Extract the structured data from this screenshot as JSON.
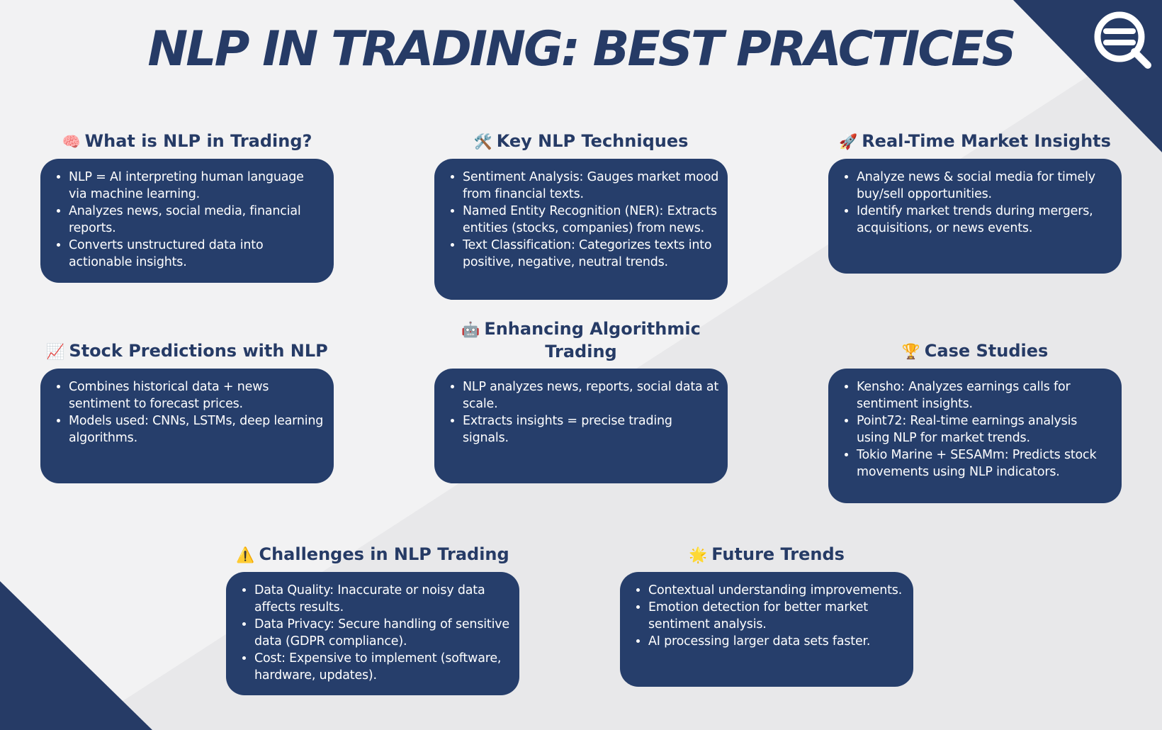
{
  "title": "NLP IN TRADING: BEST PRACTICES",
  "colors": {
    "navy": "#263b66",
    "card": "#263e6b",
    "background": "#f2f2f3"
  },
  "logo_icon": "q-magnifier-logo",
  "sections": [
    {
      "icon": "🧠",
      "icon_name": "brain-icon",
      "title": "What is NLP in Trading?",
      "items": [
        "NLP = AI interpreting human language via machine learning.",
        "Analyzes news, social media, financial reports.",
        "Converts unstructured data into actionable insights."
      ]
    },
    {
      "icon": "🛠️",
      "icon_name": "tools-icon",
      "title": "Key NLP Techniques",
      "items": [
        "Sentiment Analysis: Gauges market mood from financial texts.",
        "Named Entity Recognition (NER): Extracts entities (stocks, companies) from news.",
        "Text Classification: Categorizes texts into positive, negative, neutral trends."
      ]
    },
    {
      "icon": "🚀",
      "icon_name": "rocket-icon",
      "title": "Real-Time Market Insights",
      "items": [
        "Analyze news & social media for timely buy/sell opportunities.",
        "Identify market trends during mergers, acquisitions, or news events."
      ]
    },
    {
      "icon": "📈",
      "icon_name": "chart-up-icon",
      "title": "Stock Predictions with NLP",
      "items": [
        "Combines historical data + news sentiment to forecast prices.",
        "Models used: CNNs, LSTMs, deep learning algorithms."
      ]
    },
    {
      "icon": "🤖",
      "icon_name": "robot-icon",
      "title": "Enhancing Algorithmic Trading",
      "items": [
        "NLP analyzes news, reports, social data at scale.",
        "Extracts insights = precise trading signals."
      ]
    },
    {
      "icon": "🏆",
      "icon_name": "trophy-icon",
      "title": "Case Studies",
      "items": [
        "Kensho: Analyzes earnings calls for sentiment insights.",
        "Point72: Real-time earnings analysis using NLP for market trends.",
        "Tokio Marine + SESAMm: Predicts stock movements using NLP indicators."
      ]
    },
    {
      "icon": "⚠️",
      "icon_name": "warning-icon",
      "title": "Challenges in NLP Trading",
      "items": [
        "Data Quality: Inaccurate or noisy data affects results.",
        "Data Privacy: Secure handling of sensitive data (GDPR compliance).",
        "Cost: Expensive to implement (software, hardware, updates)."
      ]
    },
    {
      "icon": "🌟",
      "icon_name": "star-icon",
      "title": "Future Trends",
      "items": [
        "Contextual understanding improvements.",
        "Emotion detection for better market sentiment analysis.",
        "AI processing larger data sets faster."
      ]
    }
  ]
}
